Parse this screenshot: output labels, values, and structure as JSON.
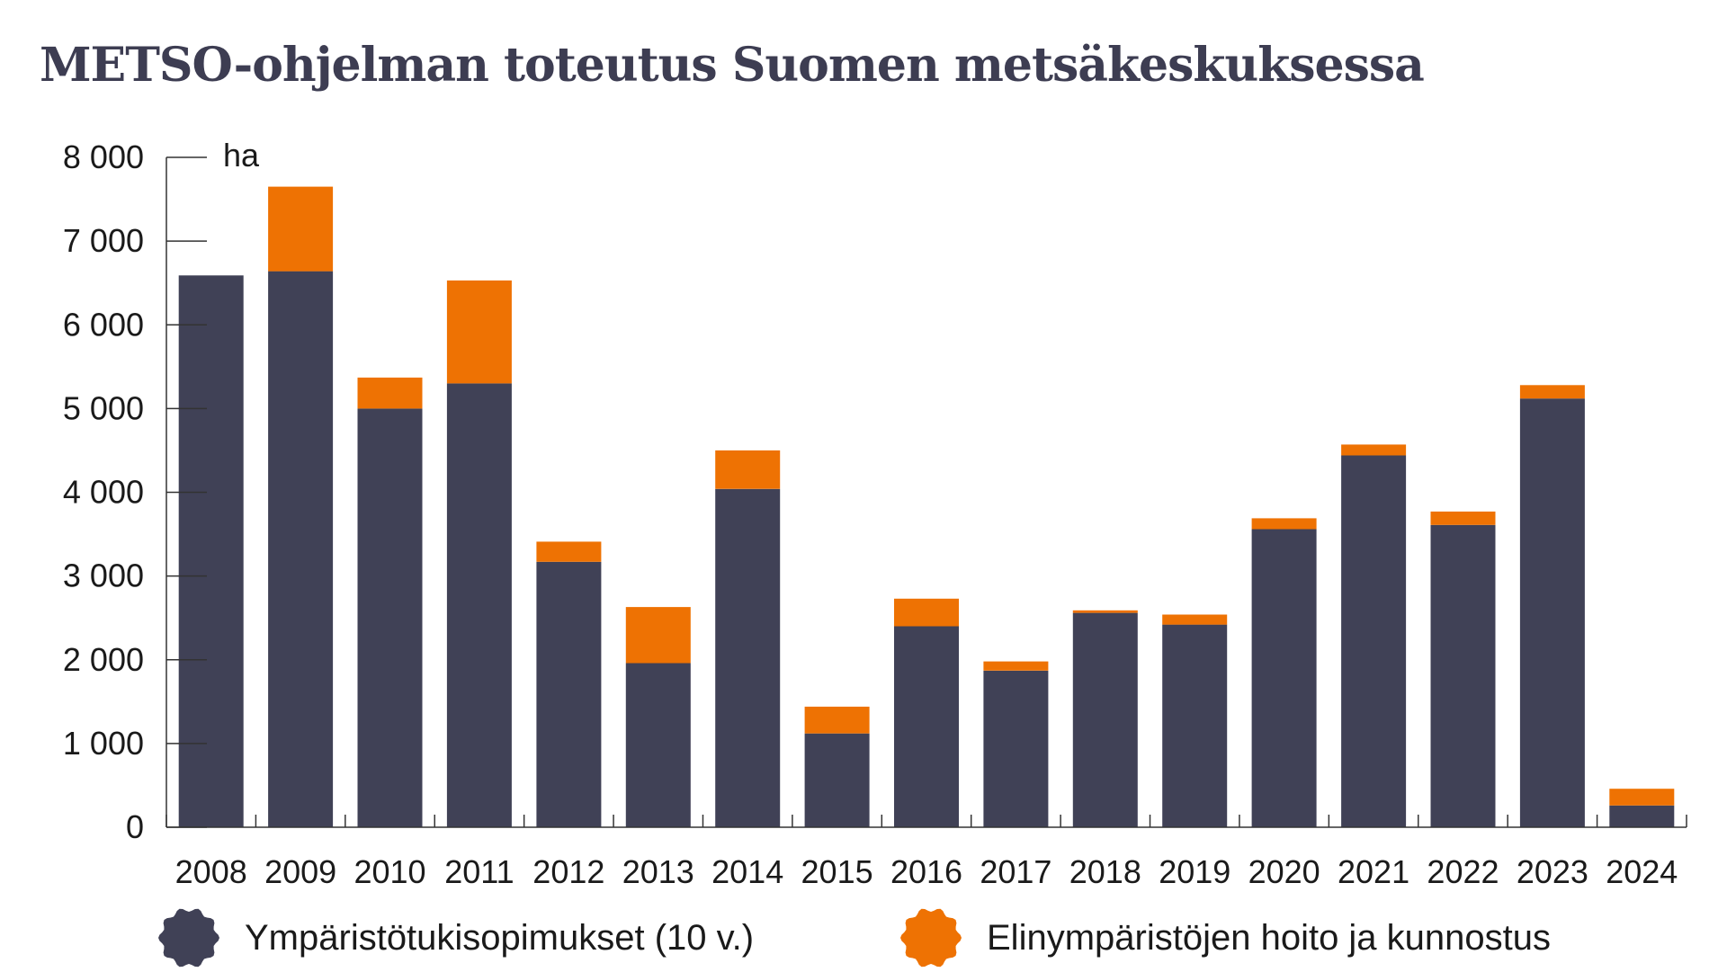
{
  "title": "METSO-ohjelman toteutus Suomen metsäkeskuksessa",
  "colors": {
    "base": "#404156",
    "top": "#ee7203",
    "axis": "#333333"
  },
  "chart_data": {
    "type": "bar",
    "stacked": true,
    "title": "METSO-ohjelman toteutus Suomen metsäkeskuksessa",
    "unit": "ha",
    "categories": [
      "2008",
      "2009",
      "2010",
      "2011",
      "2012",
      "2013",
      "2014",
      "2015",
      "2016",
      "2017",
      "2018",
      "2019",
      "2020",
      "2021",
      "2022",
      "2023",
      "2024"
    ],
    "series": [
      {
        "name": "Ympäristötukisopimukset (10 v.)",
        "color": "#404156",
        "values": [
          6590,
          6640,
          5000,
          5300,
          3170,
          1960,
          4040,
          1120,
          2400,
          1870,
          2560,
          2420,
          3560,
          4440,
          3610,
          5120,
          260
        ]
      },
      {
        "name": "Elinympäristöjen hoito ja kunnostus",
        "color": "#ee7203",
        "values": [
          0,
          1010,
          370,
          1230,
          240,
          670,
          460,
          320,
          330,
          110,
          30,
          120,
          130,
          130,
          160,
          160,
          200
        ]
      }
    ],
    "yticks": [
      "0",
      "1 000",
      "2 000",
      "3 000",
      "4 000",
      "5 000",
      "6 000",
      "7 000",
      "8 000"
    ],
    "ylim": [
      0,
      8000
    ],
    "grid": false,
    "legend_position": "bottom"
  }
}
